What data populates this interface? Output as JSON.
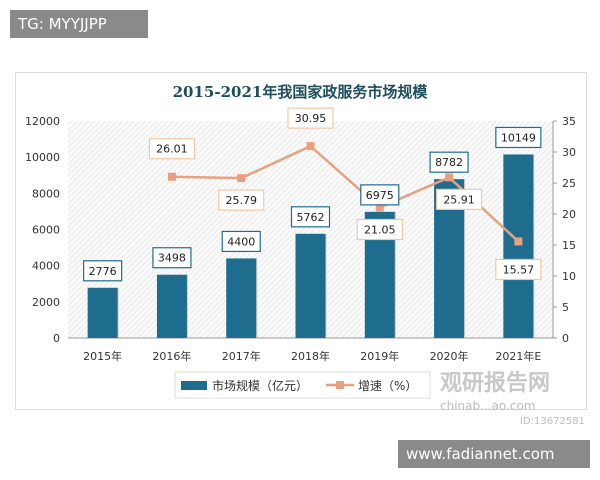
{
  "top_tag": "TG: MYYJJPP",
  "bottom_tag": "www.fadiannet.com",
  "watermark": {
    "brand": "观研报告网",
    "site": "chinab...ao.com",
    "id": "ID:13672581"
  },
  "colors": {
    "bar": "#1f6d8e",
    "line": "#e8a07f",
    "title": "#1e4d5c"
  },
  "chart_data": {
    "type": "bar+line",
    "title": "2015-2021年我国家政服务市场规模",
    "categories": [
      "2015年",
      "2016年",
      "2017年",
      "2018年",
      "2019年",
      "2020年",
      "2021年E"
    ],
    "series": [
      {
        "name": "市场规模（亿元）",
        "type": "bar",
        "axis": "left",
        "values": [
          2776,
          3498,
          4400,
          5762,
          6975,
          8782,
          10149
        ]
      },
      {
        "name": "增速（%）",
        "type": "line",
        "axis": "right",
        "values": [
          null,
          26.01,
          25.79,
          30.95,
          21.05,
          25.91,
          15.57
        ]
      }
    ],
    "y_left": {
      "ylim": [
        0,
        12000
      ],
      "ticks": [
        "0",
        "2000",
        "4000",
        "6000",
        "8000",
        "10000",
        "12000"
      ]
    },
    "y_right": {
      "ylim": [
        0,
        35
      ],
      "ticks": [
        "0",
        "5",
        "10",
        "15",
        "20",
        "25",
        "30",
        "35"
      ]
    },
    "grid": false,
    "legend": "bottom"
  }
}
